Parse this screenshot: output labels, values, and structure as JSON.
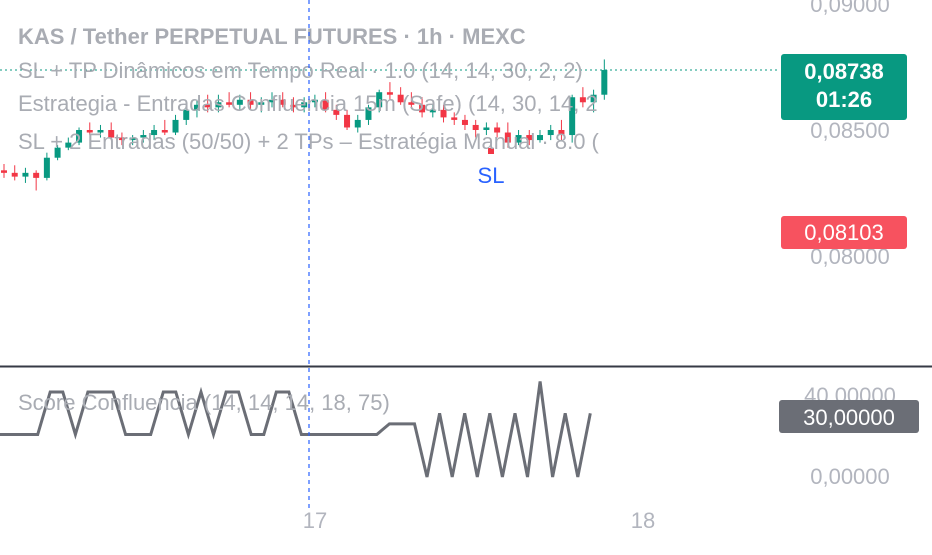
{
  "colors": {
    "up": "#089981",
    "down": "#f23645",
    "legend_text": "#a9acb3",
    "axis_text": "#b2b5be",
    "crosshair": "#2962ff",
    "last_price_bg": "#089981",
    "sl_price_bg": "#f7525f",
    "score_line": "#6b6e76",
    "score_badge_bg": "#6b6e76",
    "sl_marker": "#2962ff"
  },
  "legend": {
    "symbol_line": "KAS / Tether PERPETUAL FUTURES · 1h · MEXC",
    "indicator_1": "SL + TP Dinâmicos em Tempo Real · 1.0 (14, 14, 30, 2, 2)",
    "indicator_2": "Estrategia - Entradas Confluencia 15m (Safe) (14, 30, 14, 2",
    "indicator_3": "SL + 2 Entradas (50/50) + 2 TPs – Estratégia Manual · 8.0 (",
    "oscillator": "Score Confluencia (14, 14, 14, 18, 75)"
  },
  "price_axis": {
    "ticks": [
      "0,09000",
      "0,08500",
      "0,08000"
    ],
    "last_price": "0,08738",
    "countdown": "01:26",
    "sl_price": "0,08103"
  },
  "oscillator_axis": {
    "ticks": [
      "40,00000",
      "0,00000"
    ],
    "current": "30,00000"
  },
  "time_axis": {
    "labels": [
      "17",
      "18"
    ]
  },
  "sl_marker_label": "SL",
  "chart_data": [
    {
      "type": "candlestick",
      "title": "KAS / Tether PERPETUAL FUTURES · 1h · MEXC",
      "ylim": [
        0.0789,
        0.0912
      ],
      "y_ticks": [
        0.08,
        0.085,
        0.09
      ],
      "last_price": 0.08738,
      "sl_level": 0.08103,
      "candles": [
        {
          "o": 0.0834,
          "h": 0.08365,
          "l": 0.0831,
          "c": 0.0833
        },
        {
          "o": 0.0833,
          "h": 0.0836,
          "l": 0.083,
          "c": 0.08315
        },
        {
          "o": 0.08315,
          "h": 0.0835,
          "l": 0.0829,
          "c": 0.0833
        },
        {
          "o": 0.0833,
          "h": 0.0834,
          "l": 0.0826,
          "c": 0.0831
        },
        {
          "o": 0.0831,
          "h": 0.0841,
          "l": 0.083,
          "c": 0.0839
        },
        {
          "o": 0.0839,
          "h": 0.0844,
          "l": 0.0838,
          "c": 0.0843
        },
        {
          "o": 0.0843,
          "h": 0.0847,
          "l": 0.0842,
          "c": 0.0845
        },
        {
          "o": 0.0845,
          "h": 0.0851,
          "l": 0.0844,
          "c": 0.085
        },
        {
          "o": 0.085,
          "h": 0.0853,
          "l": 0.0848,
          "c": 0.0849
        },
        {
          "o": 0.0849,
          "h": 0.0852,
          "l": 0.0847,
          "c": 0.085
        },
        {
          "o": 0.085,
          "h": 0.0853,
          "l": 0.0846,
          "c": 0.0847
        },
        {
          "o": 0.0847,
          "h": 0.0849,
          "l": 0.0844,
          "c": 0.0846
        },
        {
          "o": 0.0846,
          "h": 0.0848,
          "l": 0.0844,
          "c": 0.0847
        },
        {
          "o": 0.0847,
          "h": 0.085,
          "l": 0.0845,
          "c": 0.0848
        },
        {
          "o": 0.0848,
          "h": 0.0852,
          "l": 0.0846,
          "c": 0.085
        },
        {
          "o": 0.085,
          "h": 0.0854,
          "l": 0.0848,
          "c": 0.0849
        },
        {
          "o": 0.0849,
          "h": 0.0856,
          "l": 0.0848,
          "c": 0.0854
        },
        {
          "o": 0.0854,
          "h": 0.0859,
          "l": 0.0852,
          "c": 0.0858
        },
        {
          "o": 0.0858,
          "h": 0.0862,
          "l": 0.0855,
          "c": 0.086
        },
        {
          "o": 0.086,
          "h": 0.0864,
          "l": 0.0857,
          "c": 0.0859
        },
        {
          "o": 0.0859,
          "h": 0.0864,
          "l": 0.0857,
          "c": 0.0861
        },
        {
          "o": 0.0861,
          "h": 0.0865,
          "l": 0.0859,
          "c": 0.086
        },
        {
          "o": 0.086,
          "h": 0.0864,
          "l": 0.0858,
          "c": 0.0862
        },
        {
          "o": 0.0862,
          "h": 0.0865,
          "l": 0.0858,
          "c": 0.086
        },
        {
          "o": 0.086,
          "h": 0.0863,
          "l": 0.0857,
          "c": 0.0861
        },
        {
          "o": 0.0861,
          "h": 0.0865,
          "l": 0.0859,
          "c": 0.0862
        },
        {
          "o": 0.0862,
          "h": 0.0865,
          "l": 0.0859,
          "c": 0.086
        },
        {
          "o": 0.086,
          "h": 0.0863,
          "l": 0.0857,
          "c": 0.0859
        },
        {
          "o": 0.0859,
          "h": 0.0863,
          "l": 0.0857,
          "c": 0.0861
        },
        {
          "o": 0.0861,
          "h": 0.0864,
          "l": 0.0859,
          "c": 0.0862
        },
        {
          "o": 0.0862,
          "h": 0.0865,
          "l": 0.0857,
          "c": 0.0858
        },
        {
          "o": 0.0858,
          "h": 0.086,
          "l": 0.0854,
          "c": 0.0856
        },
        {
          "o": 0.0856,
          "h": 0.0858,
          "l": 0.085,
          "c": 0.0851
        },
        {
          "o": 0.0851,
          "h": 0.0856,
          "l": 0.0849,
          "c": 0.0854
        },
        {
          "o": 0.0854,
          "h": 0.086,
          "l": 0.0852,
          "c": 0.0859
        },
        {
          "o": 0.0859,
          "h": 0.0866,
          "l": 0.0857,
          "c": 0.0865
        },
        {
          "o": 0.0865,
          "h": 0.0869,
          "l": 0.0862,
          "c": 0.0864
        },
        {
          "o": 0.0864,
          "h": 0.0867,
          "l": 0.086,
          "c": 0.0861
        },
        {
          "o": 0.0861,
          "h": 0.0865,
          "l": 0.0859,
          "c": 0.086
        },
        {
          "o": 0.086,
          "h": 0.0863,
          "l": 0.0855,
          "c": 0.0857
        },
        {
          "o": 0.0857,
          "h": 0.086,
          "l": 0.0855,
          "c": 0.0858
        },
        {
          "o": 0.0858,
          "h": 0.086,
          "l": 0.0853,
          "c": 0.0855
        },
        {
          "o": 0.0855,
          "h": 0.0857,
          "l": 0.0852,
          "c": 0.0854
        },
        {
          "o": 0.0854,
          "h": 0.0856,
          "l": 0.085,
          "c": 0.0852
        },
        {
          "o": 0.0852,
          "h": 0.0854,
          "l": 0.0847,
          "c": 0.085
        },
        {
          "o": 0.085,
          "h": 0.0853,
          "l": 0.0848,
          "c": 0.0851
        },
        {
          "o": 0.0851,
          "h": 0.0853,
          "l": 0.0847,
          "c": 0.0849
        },
        {
          "o": 0.0849,
          "h": 0.0853,
          "l": 0.0843,
          "c": 0.0845
        },
        {
          "o": 0.0845,
          "h": 0.085,
          "l": 0.0844,
          "c": 0.0848
        },
        {
          "o": 0.0848,
          "h": 0.085,
          "l": 0.0844,
          "c": 0.0846
        },
        {
          "o": 0.0846,
          "h": 0.085,
          "l": 0.0845,
          "c": 0.0848
        },
        {
          "o": 0.0848,
          "h": 0.0852,
          "l": 0.0846,
          "c": 0.085
        },
        {
          "o": 0.085,
          "h": 0.0854,
          "l": 0.0846,
          "c": 0.0848
        },
        {
          "o": 0.0848,
          "h": 0.0864,
          "l": 0.0845,
          "c": 0.0863
        },
        {
          "o": 0.0863,
          "h": 0.0867,
          "l": 0.0859,
          "c": 0.0861
        },
        {
          "o": 0.0861,
          "h": 0.0866,
          "l": 0.0857,
          "c": 0.0864
        },
        {
          "o": 0.0864,
          "h": 0.0878,
          "l": 0.0862,
          "c": 0.08738
        }
      ]
    },
    {
      "type": "line",
      "title": "Score Confluencia (14, 14, 14, 18, 75)",
      "ylim": [
        -7,
        53
      ],
      "y_ticks": [
        0,
        40
      ],
      "current": 30,
      "values": [
        20,
        20,
        20,
        20,
        40,
        40,
        20,
        40,
        40,
        40,
        20,
        20,
        20,
        40,
        40,
        20,
        40,
        20,
        40,
        40,
        20,
        20,
        40,
        40,
        20,
        20,
        20,
        20,
        20,
        20,
        20,
        25,
        25,
        25,
        0,
        30,
        0,
        30,
        0,
        30,
        0,
        30,
        0,
        45,
        0,
        30,
        0,
        30
      ]
    }
  ]
}
